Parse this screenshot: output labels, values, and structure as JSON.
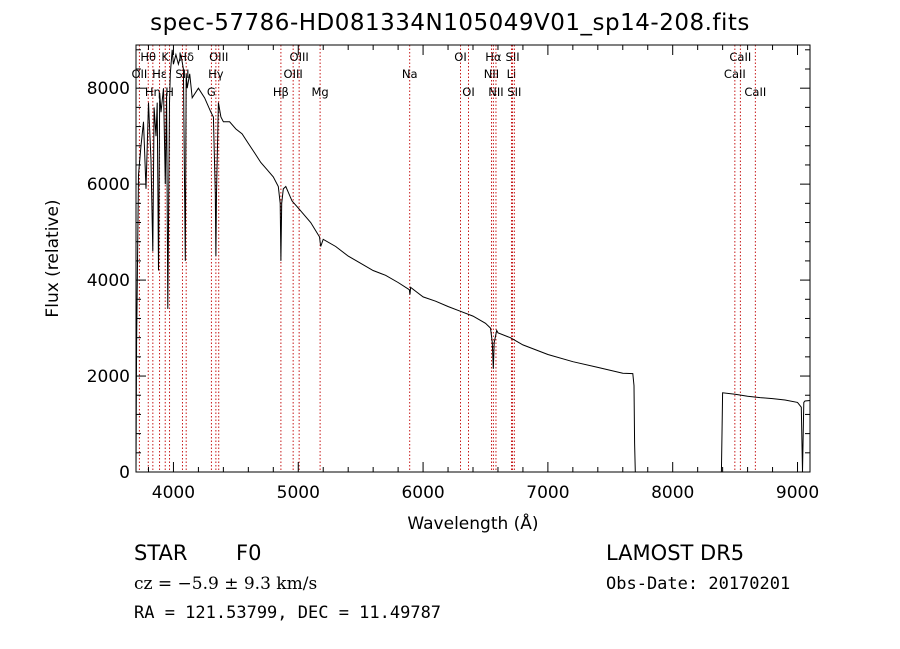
{
  "title": "spec-57786-HD081334N105049V01_sp14-208.fits",
  "info": {
    "class": "STAR",
    "subclass": "F0",
    "survey": "LAMOST DR5",
    "cz": "cz = −5.9 ± 9.3 km/s",
    "obs_date": "Obs-Date: 20170201",
    "coords": "RA = 121.53799, DEC =  11.49787"
  },
  "chart_data": {
    "type": "line",
    "xlabel": "Wavelength (Å)",
    "ylabel": "Flux (relative)",
    "xlim": [
      3700,
      9100
    ],
    "ylim": [
      0,
      8900
    ],
    "xticks": [
      4000,
      5000,
      6000,
      7000,
      8000,
      9000
    ],
    "yticks": [
      0,
      2000,
      4000,
      6000,
      8000
    ],
    "grid": false,
    "series": [
      {
        "color": "#000000",
        "x": [
          3700,
          3705,
          3720,
          3740,
          3760,
          3780,
          3800,
          3820,
          3835,
          3845,
          3860,
          3870,
          3880,
          3890,
          3900,
          3920,
          3935,
          3945,
          3955,
          3968,
          3975,
          3990,
          4000,
          4020,
          4040,
          4060,
          4080,
          4095,
          4102,
          4110,
          4130,
          4150,
          4200,
          4250,
          4300,
          4320,
          4335,
          4340,
          4345,
          4360,
          4380,
          4400,
          4450,
          4500,
          4550,
          4600,
          4650,
          4700,
          4750,
          4800,
          4840,
          4855,
          4861,
          4867,
          4880,
          4900,
          4950,
          5000,
          5100,
          5170,
          5180,
          5200,
          5300,
          5400,
          5500,
          5600,
          5700,
          5800,
          5890,
          5895,
          5900,
          5950,
          6000,
          6100,
          6200,
          6300,
          6400,
          6500,
          6540,
          6555,
          6563,
          6570,
          6590,
          6600,
          6700,
          6800,
          7000,
          7200,
          7400,
          7600,
          7680,
          7690,
          7695,
          7700,
          8000,
          8300,
          8390,
          8395,
          8400,
          8500,
          8600,
          8700,
          8800,
          8900,
          9000,
          9030,
          9040,
          9050,
          9060,
          9100
        ],
        "y": [
          0,
          2700,
          6200,
          6800,
          7300,
          5900,
          7700,
          6500,
          4600,
          7600,
          7000,
          7700,
          4200,
          7900,
          7500,
          8000,
          6000,
          7900,
          3400,
          7700,
          8300,
          8800,
          8500,
          8700,
          8500,
          8700,
          8400,
          4400,
          8300,
          8000,
          8300,
          7800,
          8000,
          7800,
          7500,
          7400,
          5800,
          4500,
          5800,
          7700,
          7400,
          7300,
          7300,
          7150,
          7050,
          6850,
          6650,
          6450,
          6300,
          6150,
          5950,
          5600,
          4400,
          5600,
          5900,
          5950,
          5650,
          5500,
          5200,
          4900,
          4700,
          4850,
          4700,
          4500,
          4350,
          4200,
          4100,
          3950,
          3800,
          3700,
          3850,
          3750,
          3650,
          3560,
          3450,
          3350,
          3250,
          3100,
          3000,
          2700,
          2150,
          2700,
          2950,
          2900,
          2800,
          2650,
          2450,
          2300,
          2180,
          2060,
          2050,
          1800,
          600,
          0,
          0,
          0,
          0,
          800,
          1650,
          1620,
          1580,
          1550,
          1530,
          1500,
          1450,
          1350,
          0,
          1450,
          1480,
          1490
        ]
      }
    ],
    "lines": [
      {
        "label": "Hθ",
        "wl": 3798,
        "row": 0
      },
      {
        "label": "OII",
        "wl": 3727,
        "row": 1
      },
      {
        "label": "Hη",
        "wl": 3835,
        "row": 2
      },
      {
        "label": "K",
        "wl": 3934,
        "row": 0
      },
      {
        "label": "Hε",
        "wl": 3889,
        "row": 1
      },
      {
        "label": "H",
        "wl": 3969,
        "row": 2
      },
      {
        "label": "Hδ",
        "wl": 4102,
        "row": 0
      },
      {
        "label": "SII",
        "wl": 4072,
        "row": 1
      },
      {
        "label": "G",
        "wl": 4304,
        "row": 2
      },
      {
        "label": "OIII",
        "wl": 4363,
        "row": 0
      },
      {
        "label": "Hγ",
        "wl": 4340,
        "row": 1
      },
      {
        "label": "Hβ",
        "wl": 4861,
        "row": 2
      },
      {
        "label": "OIII",
        "wl": 5007,
        "row": 0
      },
      {
        "label": "OIII",
        "wl": 4959,
        "row": 1
      },
      {
        "label": "Mg",
        "wl": 5175,
        "row": 2
      },
      {
        "label": "Na",
        "wl": 5893,
        "row": 1
      },
      {
        "label": "OI",
        "wl": 6300,
        "row": 0
      },
      {
        "label": "OI",
        "wl": 6364,
        "row": 2
      },
      {
        "label": "Hα",
        "wl": 6563,
        "row": 0
      },
      {
        "label": "NII",
        "wl": 6548,
        "row": 1
      },
      {
        "label": "NII",
        "wl": 6584,
        "row": 2
      },
      {
        "label": "SII",
        "wl": 6717,
        "row": 0
      },
      {
        "label": "Li",
        "wl": 6708,
        "row": 1
      },
      {
        "label": "SII",
        "wl": 6731,
        "row": 2
      },
      {
        "label": "CaII",
        "wl": 8542,
        "row": 0
      },
      {
        "label": "CaII",
        "wl": 8498,
        "row": 1
      },
      {
        "label": "CaII",
        "wl": 8662,
        "row": 2
      }
    ]
  }
}
